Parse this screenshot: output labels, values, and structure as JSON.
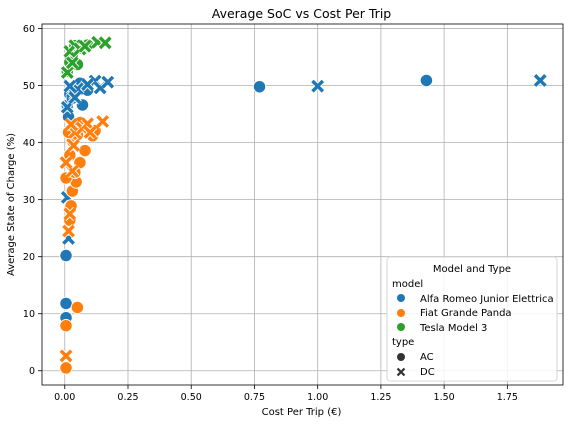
{
  "chart_data": {
    "type": "scatter",
    "title": "Average SoC vs Cost Per Trip",
    "xlabel": "Cost Per Trip (€)",
    "ylabel": "Average State of Charge (%)",
    "xlim": [
      -0.09,
      1.97
    ],
    "ylim": [
      -2.5,
      60.8
    ],
    "xticks": [
      0.0,
      0.25,
      0.5,
      0.75,
      1.0,
      1.25,
      1.5,
      1.75
    ],
    "xtick_labels": [
      "0.00",
      "0.25",
      "0.50",
      "0.75",
      "1.00",
      "1.25",
      "1.50",
      "1.75"
    ],
    "yticks": [
      0,
      10,
      20,
      30,
      40,
      50,
      60
    ],
    "ytick_labels": [
      "0",
      "10",
      "20",
      "30",
      "40",
      "50",
      "60"
    ],
    "grid": true,
    "legend": {
      "title": "Model and Type",
      "placement": "bottom-right",
      "hue_title": "model",
      "style_title": "type",
      "entries": [
        {
          "label": "Alfa Romeo Junior Elettrica",
          "color": "#1f77b4",
          "marker": "circle"
        },
        {
          "label": "Fiat Grande Panda",
          "color": "#ff7f0e",
          "marker": "circle"
        },
        {
          "label": "Tesla Model 3",
          "color": "#2ca02c",
          "marker": "circle"
        },
        {
          "label": "AC",
          "color": "#333333",
          "marker": "circle"
        },
        {
          "label": "DC",
          "color": "#333333",
          "marker": "x"
        }
      ]
    },
    "colors": {
      "Alfa Romeo Junior Elettrica": "#1f77b4",
      "Fiat Grande Panda": "#ff7f0e",
      "Tesla Model 3": "#2ca02c"
    },
    "series": [
      {
        "model": "Alfa Romeo Junior Elettrica",
        "type": "AC",
        "points": [
          [
            0.77,
            49.8
          ],
          [
            1.43,
            50.9
          ],
          [
            0.005,
            20.2
          ],
          [
            0.005,
            11.8
          ],
          [
            0.005,
            9.3
          ],
          [
            0.01,
            46.5
          ],
          [
            0.02,
            48.5
          ],
          [
            0.04,
            49.5
          ],
          [
            0.07,
            46.6
          ],
          [
            0.09,
            49.2
          ],
          [
            0.06,
            50.4
          ],
          [
            0.015,
            44.5
          ],
          [
            0.03,
            47.8
          ]
        ]
      },
      {
        "model": "Alfa Romeo Junior Elettrica",
        "type": "DC",
        "points": [
          [
            1.0,
            49.9
          ],
          [
            1.88,
            50.9
          ],
          [
            0.015,
            23.2
          ],
          [
            0.01,
            30.4
          ],
          [
            0.01,
            46.2
          ],
          [
            0.03,
            48.9
          ],
          [
            0.05,
            49.4
          ],
          [
            0.12,
            50.8
          ],
          [
            0.14,
            49.6
          ],
          [
            0.17,
            50.6
          ],
          [
            0.09,
            50.2
          ],
          [
            0.02,
            49.9
          ],
          [
            0.04,
            47.9
          ]
        ]
      },
      {
        "model": "Fiat Grande Panda",
        "type": "AC",
        "points": [
          [
            0.05,
            11.1
          ],
          [
            0.005,
            7.9
          ],
          [
            0.005,
            0.5
          ],
          [
            0.02,
            26.4
          ],
          [
            0.025,
            28.9
          ],
          [
            0.03,
            31.5
          ],
          [
            0.045,
            33.1
          ],
          [
            0.06,
            36.5
          ],
          [
            0.08,
            38.6
          ],
          [
            0.005,
            33.8
          ],
          [
            0.02,
            37.8
          ],
          [
            0.03,
            40.3
          ],
          [
            0.05,
            41.4
          ],
          [
            0.11,
            41.2
          ],
          [
            0.12,
            42.1
          ],
          [
            0.06,
            43.5
          ],
          [
            0.015,
            41.8
          ],
          [
            0.04,
            34.8
          ]
        ]
      },
      {
        "model": "Fiat Grande Panda",
        "type": "DC",
        "points": [
          [
            0.005,
            2.6
          ],
          [
            0.015,
            24.5
          ],
          [
            0.02,
            27.5
          ],
          [
            0.03,
            35.0
          ],
          [
            0.035,
            39.5
          ],
          [
            0.04,
            41.8
          ],
          [
            0.07,
            42.5
          ],
          [
            0.09,
            43.3
          ],
          [
            0.15,
            43.7
          ],
          [
            0.005,
            36.5
          ],
          [
            0.025,
            43.2
          ],
          [
            0.1,
            41.8
          ]
        ]
      },
      {
        "model": "Tesla Model 3",
        "type": "AC",
        "points": [
          [
            0.01,
            52.5
          ],
          [
            0.03,
            55.5
          ],
          [
            0.05,
            53.7
          ],
          [
            0.07,
            56.5
          ],
          [
            0.09,
            57.1
          ],
          [
            0.02,
            54.1
          ],
          [
            0.04,
            57.0
          ]
        ]
      },
      {
        "model": "Tesla Model 3",
        "type": "DC",
        "points": [
          [
            0.01,
            52.3
          ],
          [
            0.02,
            56.0
          ],
          [
            0.04,
            57.0
          ],
          [
            0.06,
            56.4
          ],
          [
            0.08,
            56.9
          ],
          [
            0.13,
            57.6
          ],
          [
            0.16,
            57.5
          ],
          [
            0.03,
            54.0
          ]
        ]
      }
    ]
  }
}
